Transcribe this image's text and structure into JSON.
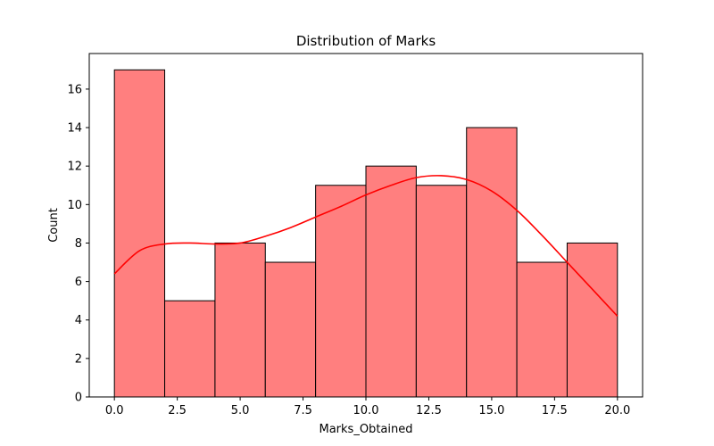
{
  "chart_data": {
    "type": "bar",
    "title": "Distribution of Marks",
    "xlabel": "Marks_Obtained",
    "ylabel": "Count",
    "bin_edges": [
      0,
      2,
      4,
      6,
      8,
      10,
      12,
      14,
      16,
      18,
      20
    ],
    "values": [
      17,
      5,
      8,
      7,
      11,
      12,
      11,
      14,
      7,
      8
    ],
    "xlim": [
      -1,
      21
    ],
    "ylim": [
      0,
      17.85
    ],
    "xticks": [
      0,
      2.5,
      5,
      7.5,
      10,
      12.5,
      15,
      17.5,
      20
    ],
    "xtick_labels": [
      "0.0",
      "2.5",
      "5.0",
      "7.5",
      "10.0",
      "12.5",
      "15.0",
      "17.5",
      "20.0"
    ],
    "yticks": [
      0,
      2,
      4,
      6,
      8,
      10,
      12,
      14,
      16
    ],
    "ytick_labels": [
      "0",
      "2",
      "4",
      "6",
      "8",
      "10",
      "12",
      "14",
      "16"
    ],
    "kde_curve": {
      "x": [
        0,
        1,
        2,
        3,
        4,
        5,
        6,
        7,
        8,
        9,
        10,
        11,
        12,
        13,
        14,
        15,
        16,
        17,
        18,
        19,
        20
      ],
      "y": [
        6.4,
        7.6,
        7.95,
        8.0,
        7.95,
        8.0,
        8.35,
        8.8,
        9.35,
        9.9,
        10.5,
        11.0,
        11.4,
        11.5,
        11.3,
        10.7,
        9.7,
        8.4,
        7.0,
        5.6,
        4.2
      ]
    },
    "colors": {
      "bar_fill": "#ff7f7f",
      "bar_edge": "#000000",
      "kde_line": "#ff0000"
    },
    "grid": false,
    "legend": "none"
  }
}
